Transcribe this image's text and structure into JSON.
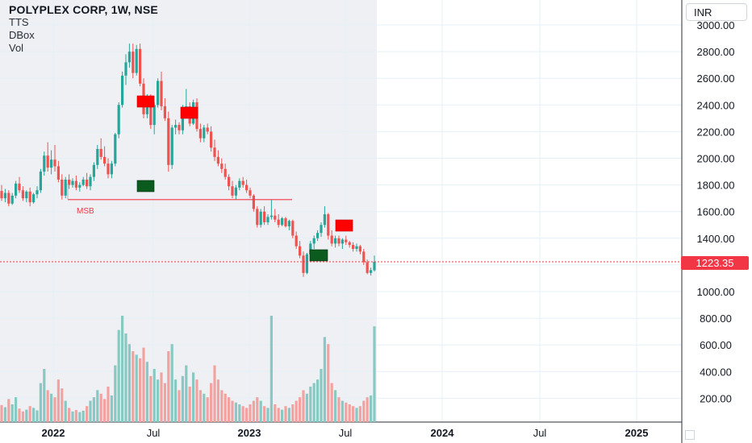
{
  "header": {
    "title": "POLYPLEX CORP, 1W, NSE",
    "indicators": [
      "TTS",
      "DBox",
      "Vol"
    ]
  },
  "currency_button": "INR",
  "last_price_label": "1223.35",
  "msb_label": "MSB",
  "colors": {
    "up": "#26a69a",
    "down": "#ef5350",
    "vol_up": "#89c9c3",
    "vol_down": "#f2a3a1",
    "marker_red": "#ff0000",
    "marker_green": "#0b5a1e",
    "history_bg": "#eef0f3",
    "grid": "#e4f0f8",
    "msb_line": "#f23645"
  },
  "chart_data": {
    "type": "candlestick",
    "symbol": "POLYPLEX CORP",
    "interval": "1W",
    "exchange": "NSE",
    "y_ticks": [
      "3000.00",
      "2800.00",
      "2600.00",
      "2400.00",
      "2200.00",
      "2000.00",
      "1800.00",
      "1600.00",
      "1400.00",
      "1200.00",
      "1000.00",
      "800.00",
      "600.00",
      "400.00",
      "200.00"
    ],
    "x_ticks": [
      "2022",
      "Jul",
      "2023",
      "Jul",
      "2024",
      "Jul",
      "2025"
    ],
    "last_price": 1223.35,
    "msb_level": 1690,
    "series": [
      [
        1755,
        1800,
        1680,
        1700,
        48
      ],
      [
        1700,
        1770,
        1670,
        1740,
        42
      ],
      [
        1740,
        1760,
        1640,
        1660,
        65
      ],
      [
        1660,
        1740,
        1650,
        1720,
        50
      ],
      [
        1720,
        1830,
        1700,
        1810,
        70
      ],
      [
        1810,
        1860,
        1740,
        1760,
        38
      ],
      [
        1760,
        1790,
        1680,
        1700,
        30
      ],
      [
        1700,
        1760,
        1670,
        1750,
        35
      ],
      [
        1750,
        1780,
        1640,
        1670,
        45
      ],
      [
        1670,
        1740,
        1660,
        1730,
        40
      ],
      [
        1730,
        1790,
        1700,
        1760,
        33
      ],
      [
        1760,
        1920,
        1740,
        1900,
        110
      ],
      [
        1900,
        2050,
        1870,
        2020,
        150
      ],
      [
        2020,
        2120,
        1900,
        1930,
        90
      ],
      [
        1930,
        2060,
        1880,
        1990,
        80
      ],
      [
        1990,
        2100,
        1900,
        1940,
        70
      ],
      [
        1940,
        1980,
        1820,
        1840,
        120
      ],
      [
        1840,
        1880,
        1690,
        1720,
        95
      ],
      [
        1720,
        1860,
        1700,
        1840,
        60
      ],
      [
        1840,
        1880,
        1770,
        1800,
        40
      ],
      [
        1800,
        1850,
        1780,
        1830,
        30
      ],
      [
        1830,
        1870,
        1760,
        1780,
        34
      ],
      [
        1780,
        1820,
        1750,
        1800,
        28
      ],
      [
        1800,
        1860,
        1790,
        1840,
        32
      ],
      [
        1840,
        1890,
        1770,
        1790,
        45
      ],
      [
        1790,
        1880,
        1760,
        1860,
        60
      ],
      [
        1860,
        1970,
        1830,
        1950,
        70
      ],
      [
        1950,
        2100,
        1920,
        2070,
        90
      ],
      [
        2070,
        2150,
        1990,
        2010,
        80
      ],
      [
        2010,
        2090,
        1940,
        1960,
        65
      ],
      [
        1960,
        2000,
        1850,
        1880,
        100
      ],
      [
        1880,
        1980,
        1850,
        1960,
        75
      ],
      [
        1960,
        2190,
        1940,
        2180,
        160
      ],
      [
        2180,
        2420,
        2150,
        2400,
        260
      ],
      [
        2400,
        2650,
        2380,
        2620,
        300
      ],
      [
        2620,
        2780,
        2550,
        2720,
        250
      ],
      [
        2720,
        2860,
        2680,
        2800,
        220
      ],
      [
        2800,
        2860,
        2600,
        2640,
        200
      ],
      [
        2640,
        2850,
        2620,
        2820,
        190
      ],
      [
        2820,
        2860,
        2540,
        2560,
        180
      ],
      [
        2560,
        2600,
        2300,
        2330,
        210
      ],
      [
        2330,
        2480,
        2300,
        2450,
        170
      ],
      [
        2450,
        2480,
        2220,
        2250,
        130
      ],
      [
        2250,
        2420,
        2180,
        2400,
        150
      ],
      [
        2400,
        2600,
        2380,
        2580,
        120
      ],
      [
        2580,
        2650,
        2360,
        2390,
        140
      ],
      [
        2390,
        2450,
        2280,
        2300,
        110
      ],
      [
        2300,
        2350,
        1900,
        1950,
        200
      ],
      [
        1950,
        2250,
        1920,
        2230,
        220
      ],
      [
        2230,
        2290,
        2180,
        2250,
        120
      ],
      [
        2250,
        2270,
        2180,
        2210,
        90
      ],
      [
        2210,
        2400,
        2180,
        2370,
        130
      ],
      [
        2370,
        2520,
        2340,
        2390,
        160
      ],
      [
        2390,
        2420,
        2240,
        2260,
        100
      ],
      [
        2260,
        2440,
        2250,
        2420,
        140
      ],
      [
        2420,
        2450,
        2200,
        2220,
        120
      ],
      [
        2220,
        2260,
        2120,
        2150,
        90
      ],
      [
        2150,
        2250,
        2120,
        2230,
        80
      ],
      [
        2230,
        2260,
        2180,
        2200,
        70
      ],
      [
        2200,
        2240,
        2050,
        2080,
        110
      ],
      [
        2080,
        2140,
        1980,
        2010,
        160
      ],
      [
        2010,
        2060,
        1940,
        1960,
        120
      ],
      [
        1960,
        2000,
        1890,
        1920,
        90
      ],
      [
        1920,
        1960,
        1840,
        1860,
        80
      ],
      [
        1860,
        1880,
        1760,
        1790,
        70
      ],
      [
        1790,
        1830,
        1700,
        1720,
        60
      ],
      [
        1720,
        1800,
        1690,
        1780,
        55
      ],
      [
        1780,
        1850,
        1760,
        1830,
        50
      ],
      [
        1830,
        1860,
        1780,
        1800,
        45
      ],
      [
        1800,
        1840,
        1740,
        1760,
        40
      ],
      [
        1760,
        1780,
        1700,
        1720,
        50
      ],
      [
        1720,
        1730,
        1600,
        1620,
        60
      ],
      [
        1620,
        1640,
        1480,
        1500,
        70
      ],
      [
        1500,
        1620,
        1480,
        1600,
        60
      ],
      [
        1600,
        1640,
        1500,
        1520,
        45
      ],
      [
        1520,
        1580,
        1500,
        1560,
        40
      ],
      [
        1560,
        1690,
        1540,
        1570,
        300
      ],
      [
        1570,
        1620,
        1520,
        1540,
        50
      ],
      [
        1540,
        1580,
        1480,
        1500,
        40
      ],
      [
        1500,
        1560,
        1490,
        1550,
        35
      ],
      [
        1550,
        1560,
        1480,
        1490,
        45
      ],
      [
        1490,
        1540,
        1460,
        1530,
        40
      ],
      [
        1530,
        1540,
        1400,
        1420,
        50
      ],
      [
        1420,
        1450,
        1320,
        1340,
        60
      ],
      [
        1340,
        1380,
        1250,
        1270,
        70
      ],
      [
        1270,
        1300,
        1110,
        1140,
        90
      ],
      [
        1140,
        1290,
        1130,
        1280,
        80
      ],
      [
        1280,
        1380,
        1260,
        1360,
        100
      ],
      [
        1360,
        1420,
        1320,
        1400,
        110
      ],
      [
        1400,
        1460,
        1380,
        1440,
        120
      ],
      [
        1440,
        1520,
        1410,
        1500,
        150
      ],
      [
        1500,
        1640,
        1480,
        1580,
        240
      ],
      [
        1580,
        1590,
        1390,
        1420,
        220
      ],
      [
        1420,
        1460,
        1340,
        1360,
        110
      ],
      [
        1360,
        1420,
        1330,
        1400,
        90
      ],
      [
        1400,
        1420,
        1340,
        1360,
        70
      ],
      [
        1360,
        1400,
        1320,
        1390,
        60
      ],
      [
        1390,
        1420,
        1350,
        1370,
        55
      ],
      [
        1370,
        1380,
        1330,
        1350,
        50
      ],
      [
        1350,
        1370,
        1300,
        1320,
        45
      ],
      [
        1320,
        1360,
        1300,
        1340,
        40
      ],
      [
        1340,
        1350,
        1280,
        1300,
        45
      ],
      [
        1300,
        1320,
        1200,
        1220,
        60
      ],
      [
        1220,
        1240,
        1130,
        1140,
        70
      ],
      [
        1140,
        1180,
        1120,
        1160,
        75
      ],
      [
        1160,
        1270,
        1150,
        1223.35,
        270
      ]
    ],
    "series_fields": [
      "open",
      "high",
      "low",
      "close",
      "volume_px"
    ],
    "markers": [
      {
        "type": "red",
        "index": 41
      },
      {
        "type": "red",
        "index": 55
      },
      {
        "type": "green",
        "index": 42
      },
      {
        "type": "green",
        "index": 95
      },
      {
        "type": "red",
        "index": 103
      }
    ]
  }
}
